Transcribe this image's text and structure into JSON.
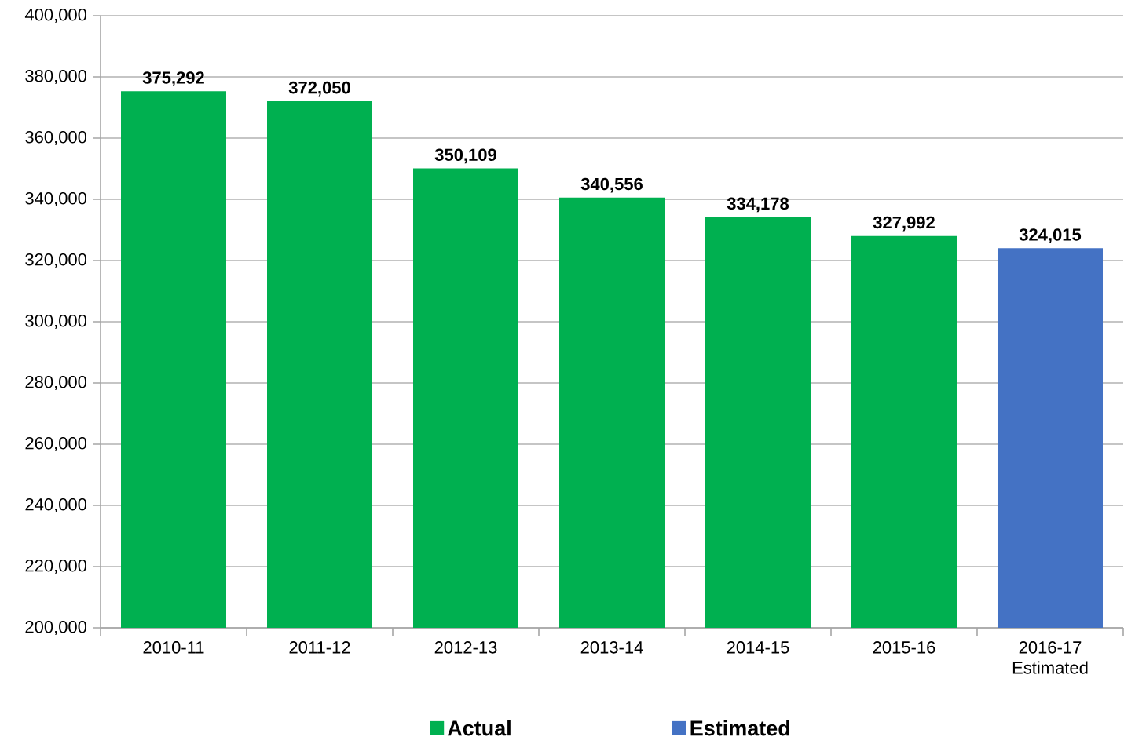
{
  "chart_data": {
    "type": "bar",
    "categories": [
      "2010-11",
      "2011-12",
      "2012-13",
      "2013-14",
      "2014-15",
      "2015-16",
      "2016-17 Estimated"
    ],
    "series": [
      {
        "name": "Actual",
        "color": "#00b050",
        "values": [
          375292,
          372050,
          350109,
          340556,
          334178,
          327992,
          null
        ],
        "value_labels": [
          "375,292",
          "372,050",
          "350,109",
          "340,556",
          "334,178",
          "327,992",
          null
        ]
      },
      {
        "name": "Estimated",
        "color": "#4472c4",
        "values": [
          null,
          null,
          null,
          null,
          null,
          null,
          324015
        ],
        "value_labels": [
          null,
          null,
          null,
          null,
          null,
          null,
          "324,015"
        ]
      }
    ],
    "ylim": [
      200000,
      400000
    ],
    "yticks": [
      {
        "value": 200000,
        "label": "200,000"
      },
      {
        "value": 220000,
        "label": "220,000"
      },
      {
        "value": 240000,
        "label": "240,000"
      },
      {
        "value": 260000,
        "label": "260,000"
      },
      {
        "value": 280000,
        "label": "280,000"
      },
      {
        "value": 300000,
        "label": "300,000"
      },
      {
        "value": 320000,
        "label": "320,000"
      },
      {
        "value": 340000,
        "label": "340,000"
      },
      {
        "value": 360000,
        "label": "360,000"
      },
      {
        "value": 380000,
        "label": "380,000"
      },
      {
        "value": 400000,
        "label": "400,000"
      }
    ],
    "grid": "y",
    "legend": "bottom"
  }
}
